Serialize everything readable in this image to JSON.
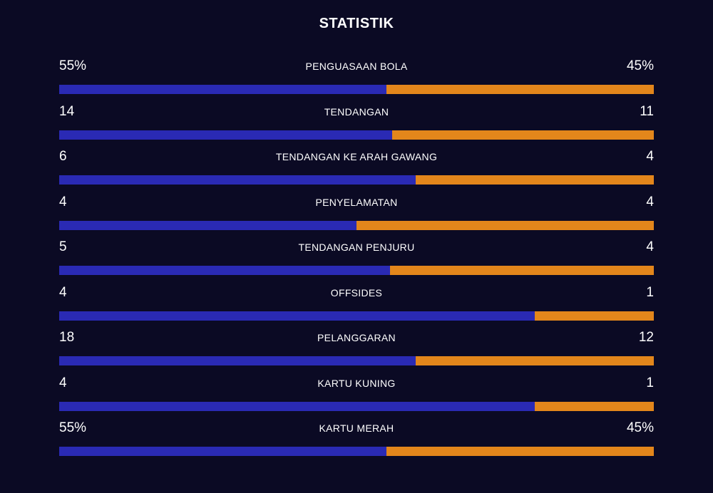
{
  "title": "STATISTIK",
  "colors": {
    "background": "#0b0a24",
    "home_bar": "#2a2ab4",
    "away_bar": "#e3861b"
  },
  "stats": [
    {
      "label": "PENGUASAAN BOLA",
      "home": "55%",
      "away": "45%",
      "home_share": 0.55
    },
    {
      "label": "TENDANGAN",
      "home": "14",
      "away": "11",
      "home_share": 0.56
    },
    {
      "label": "TENDANGAN KE ARAH GAWANG",
      "home": "6",
      "away": "4",
      "home_share": 0.6
    },
    {
      "label": "PENYELAMATAN",
      "home": "4",
      "away": "4",
      "home_share": 0.5
    },
    {
      "label": "TENDANGAN PENJURU",
      "home": "5",
      "away": "4",
      "home_share": 0.556
    },
    {
      "label": "OFFSIDES",
      "home": "4",
      "away": "1",
      "home_share": 0.8
    },
    {
      "label": "PELANGGARAN",
      "home": "18",
      "away": "12",
      "home_share": 0.6
    },
    {
      "label": "KARTU KUNING",
      "home": "4",
      "away": "1",
      "home_share": 0.8
    },
    {
      "label": "KARTU MERAH",
      "home": "55%",
      "away": "45%",
      "home_share": 0.55
    }
  ]
}
